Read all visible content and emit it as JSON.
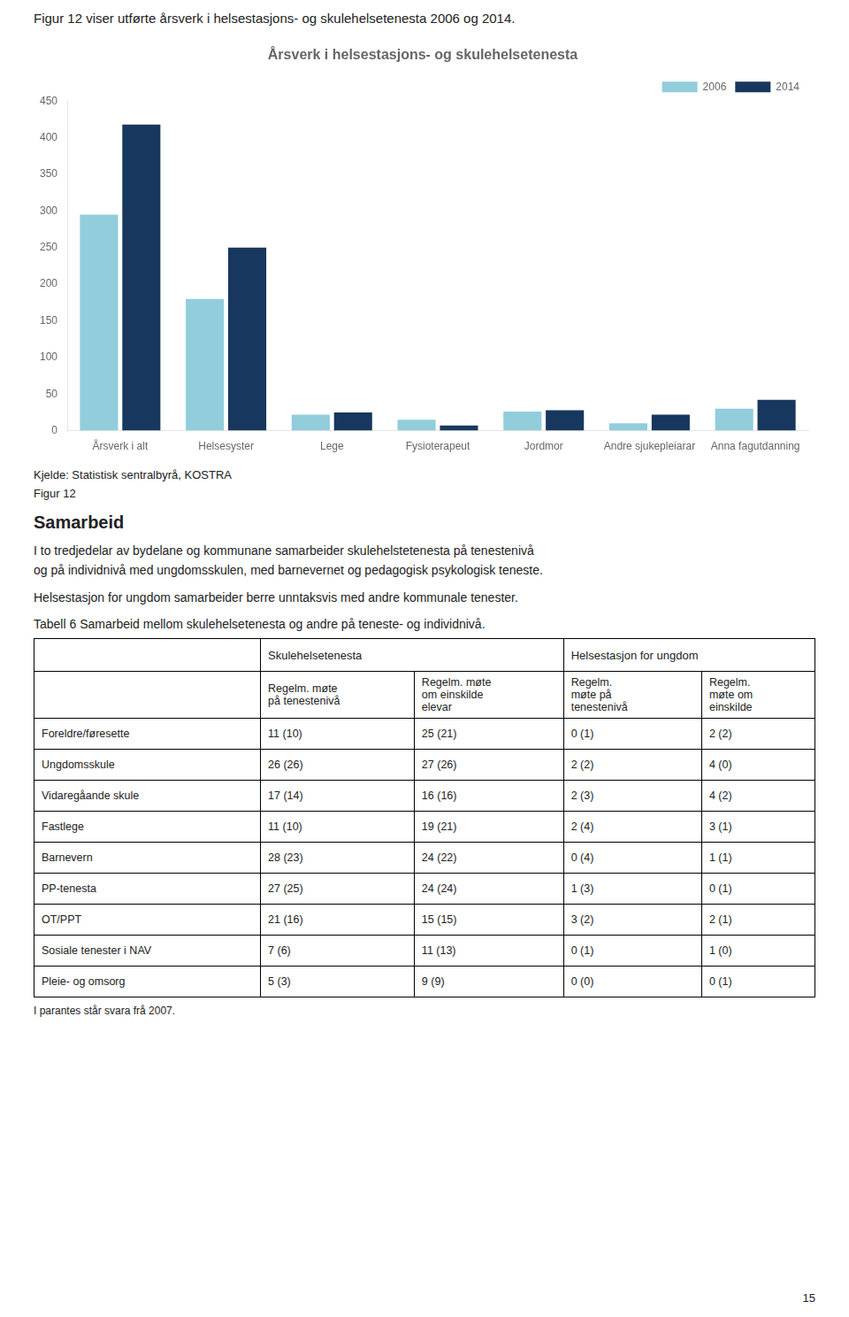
{
  "page_title": "Figur 12 viser utførte årsverk i helsestasjons- og skulehelsetenesta 2006 og 2014.",
  "chart_data": {
    "type": "bar",
    "title": "Årsverk i helsestasjons- og skulehelsetenesta",
    "categories": [
      "Årsverk i alt",
      "Helsesyster",
      "Lege",
      "Fysioterapeut",
      "Jordmor",
      "Andre sjukepleiarar",
      "Anna fagutdanning"
    ],
    "series": [
      {
        "name": "2006",
        "color": "#92CDDC",
        "values": [
          295,
          180,
          22,
          15,
          26,
          10,
          30
        ]
      },
      {
        "name": "2014",
        "color": "#17375E",
        "values": [
          418,
          250,
          25,
          7,
          28,
          22,
          42
        ]
      }
    ],
    "ylim": [
      0,
      450
    ],
    "yticks": [
      0,
      50,
      100,
      150,
      200,
      250,
      300,
      350,
      400,
      450
    ],
    "grid": false,
    "legend": "upper right"
  },
  "source_text": "Kjelde: Statistisk sentralbyrå, KOSTRA",
  "figur_label": "Figur 12",
  "section_title": "Samarbeid",
  "paragraphs": [
    "I to tredjedelar av bydelane og kommunane samarbeider skulehelstetenesta på tenestenivå\nog på individnivå med ungdomsskulen, med barnevernet og  pedagogisk psykologisk teneste.",
    "Helsestasjon for ungdom samarbeider berre unntaksvis med andre kommunale tenester."
  ],
  "table": {
    "title": "Tabell 6 Samarbeid mellom skulehelsetenesta og andre på teneste- og individnivå.",
    "column_groups": [
      {
        "name": "Skulehelsetenesta",
        "columns": [
          "Regelm. møte\npå tenestenivå",
          "Regelm. møte\nom einskilde\nelevar"
        ]
      },
      {
        "name": "Helsestasjon for ungdom",
        "columns": [
          "Regelm.\nmøte på\ntenestenivå",
          "Regelm.\nmøte om\neinskilde"
        ]
      }
    ],
    "rows": [
      {
        "name": "Foreldre/føresette",
        "values": [
          "11 (10)",
          "25 (21)",
          "0 (1)",
          "2 (2)"
        ]
      },
      {
        "name": "Ungdomsskule",
        "values": [
          "26 (26)",
          "27 (26)",
          "2 (2)",
          "4 (0)"
        ]
      },
      {
        "name": "Vidaregåande skule",
        "values": [
          "17 (14)",
          "16 (16)",
          "2 (3)",
          "4 (2)"
        ]
      },
      {
        "name": "Fastlege",
        "values": [
          "11 (10)",
          "19 (21)",
          "2 (4)",
          "3 (1)"
        ]
      },
      {
        "name": "Barnevern",
        "values": [
          "28 (23)",
          "24 (22)",
          "0 (4)",
          "1 (1)"
        ]
      },
      {
        "name": "PP-tenesta",
        "values": [
          "27 (25)",
          "24 (24)",
          "1 (3)",
          "0 (1)"
        ]
      },
      {
        "name": "OT/PPT",
        "values": [
          "21 (16)",
          "15 (15)",
          "3 (2)",
          "2 (1)"
        ]
      },
      {
        "name": "Sosiale tenester i NAV",
        "values": [
          "7 (6)",
          "11 (13)",
          "0 (1)",
          "1 (0)"
        ]
      },
      {
        "name": "Pleie- og omsorg",
        "values": [
          "5 (3)",
          "9 (9)",
          "0 (0)",
          "0 (1)"
        ]
      }
    ],
    "footnote": "I parantes står svara frå 2007."
  },
  "page_number": "15"
}
